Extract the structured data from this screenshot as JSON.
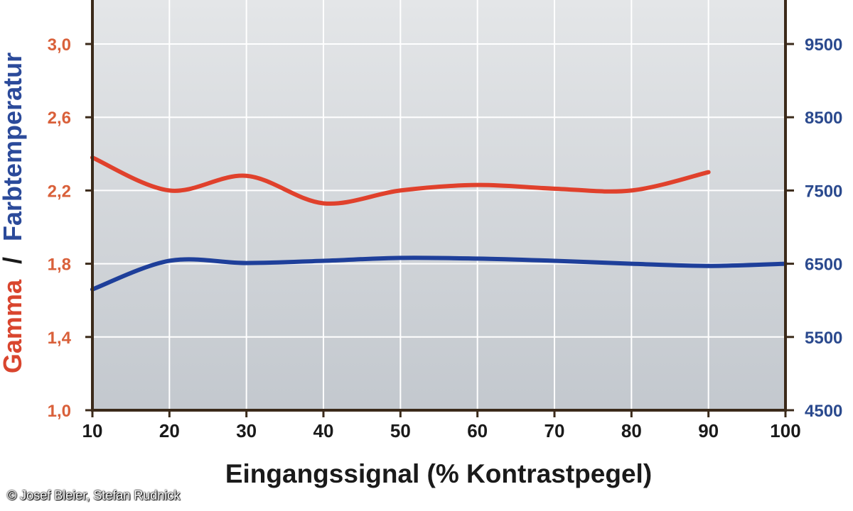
{
  "chart_data": {
    "type": "line",
    "title": "",
    "xlabel": "Eingangssignal (% Kontrastpegel)",
    "ylabel_left": "Gamma",
    "ylabel_separator": "/",
    "ylabel_right": "Farbtemperatur",
    "x_ticks": [
      "10",
      "20",
      "30",
      "40",
      "50",
      "60",
      "70",
      "80",
      "90",
      "100"
    ],
    "y_left_ticks": [
      "1,0",
      "1,4",
      "1,8",
      "2,2",
      "2,6",
      "3,0"
    ],
    "y_right_ticks": [
      "4500",
      "5500",
      "6500",
      "7500",
      "8500",
      "9500"
    ],
    "xlim": [
      10,
      100
    ],
    "ylim_left": [
      1.0,
      3.0
    ],
    "ylim_right": [
      4500,
      9500
    ],
    "grid": true,
    "colors": {
      "gamma": "#e0412c",
      "farbtemperatur": "#1e3f9a",
      "plot_bg_top": "#e4e6e8",
      "plot_bg_bottom": "#c3c8ce",
      "axis": "#3b2a1a",
      "gamma_label": "#d9452e",
      "farbtemperatur_label": "#2b4a9a",
      "tick_left": "#d9603a",
      "tick_right": "#2b4a8e"
    },
    "series": [
      {
        "axis": "left",
        "color": "#e0412c",
        "x": [
          10,
          20,
          30,
          40,
          50,
          60,
          70,
          80,
          90
        ],
        "values": [
          2.38,
          2.2,
          2.28,
          2.13,
          2.2,
          2.23,
          2.21,
          2.2,
          2.3
        ]
      },
      {
        "axis": "right",
        "color": "#1e3f9a",
        "x": [
          10,
          20,
          30,
          40,
          50,
          60,
          70,
          80,
          90,
          100
        ],
        "values": [
          6150,
          6540,
          6510,
          6540,
          6580,
          6570,
          6540,
          6500,
          6470,
          6500
        ]
      }
    ]
  },
  "copyright": "© Josef Bleier, Stefan Rudnick"
}
